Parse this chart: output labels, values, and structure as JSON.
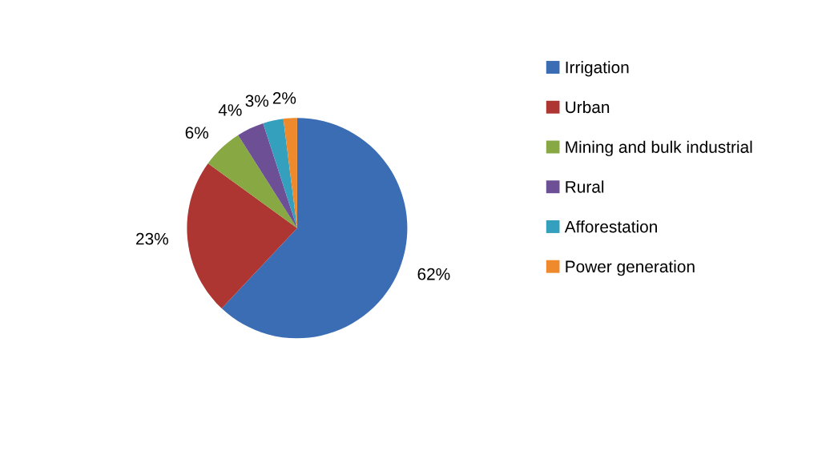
{
  "chart_data": {
    "type": "pie",
    "categories": [
      "Irrigation",
      "Urban",
      "Mining and bulk industrial",
      "Rural",
      "Afforestation",
      "Power generation"
    ],
    "values": [
      62,
      23,
      6,
      4,
      3,
      2
    ],
    "colors": [
      "#3a6db3",
      "#ad3633",
      "#88a843",
      "#6c4f94",
      "#35a0bd",
      "#ee8a2c"
    ],
    "value_labels": [
      "62%",
      "23%",
      "6%",
      "4%",
      "3%",
      "2%"
    ],
    "legend": "right"
  }
}
